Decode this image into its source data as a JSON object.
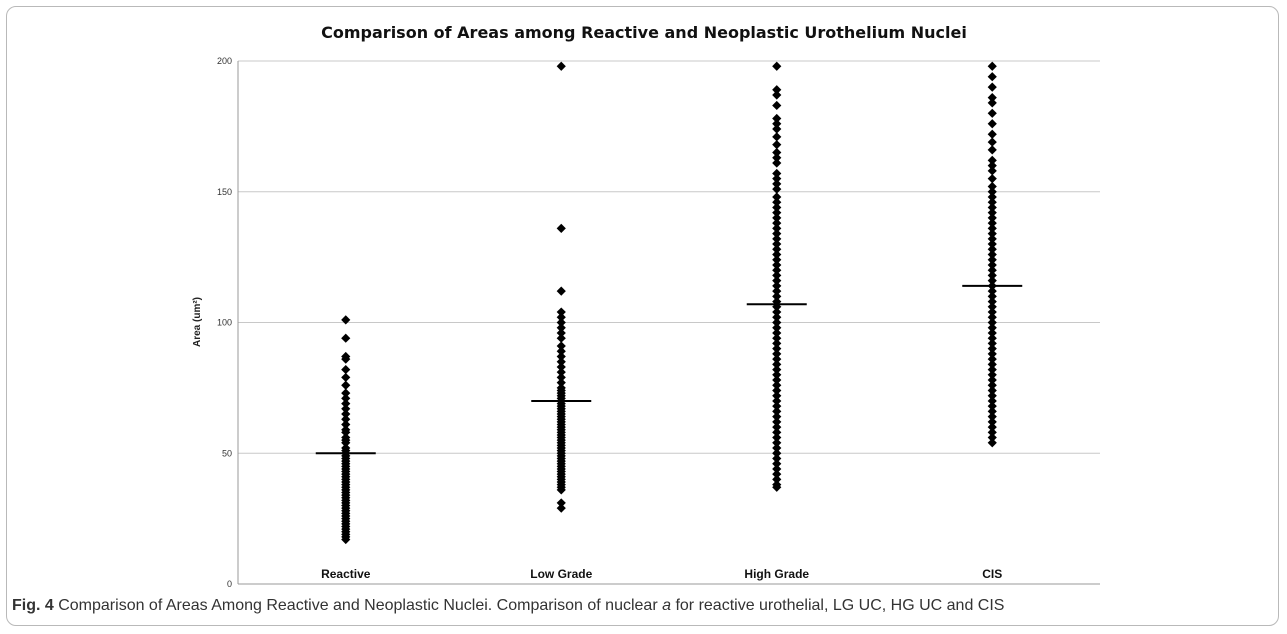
{
  "chart_data": {
    "type": "scatter",
    "title": "Comparison of Areas among Reactive and Neoplastic Urothelium Nuclei",
    "xlabel": "",
    "ylabel": "Area (um²)",
    "ylim": [
      0,
      200
    ],
    "yticks": [
      0,
      50,
      100,
      150,
      200
    ],
    "grid": true,
    "categories": [
      "Reactive",
      "Low Grade",
      "High Grade",
      "CIS"
    ],
    "means": [
      50,
      70,
      107,
      114
    ],
    "series": [
      {
        "category": "Reactive",
        "values": [
          101,
          94,
          87,
          86,
          82,
          79,
          76,
          73,
          71,
          69,
          67,
          65,
          63,
          61,
          59,
          58,
          56,
          55,
          54,
          52,
          51,
          50,
          49,
          48,
          47,
          46,
          45,
          44,
          43,
          42,
          41,
          40,
          39,
          38,
          37,
          36,
          35,
          34,
          33,
          32,
          31,
          30,
          29,
          28,
          27,
          26,
          25,
          24,
          23,
          22,
          21,
          20,
          19,
          18,
          17
        ]
      },
      {
        "category": "Low Grade",
        "values": [
          198,
          136,
          112,
          104,
          102,
          100,
          98,
          96,
          94,
          91,
          89,
          87,
          85,
          83,
          81,
          79,
          77,
          75,
          74,
          73,
          72,
          71,
          70,
          69,
          68,
          67,
          66,
          65,
          64,
          63,
          62,
          61,
          60,
          59,
          58,
          57,
          56,
          55,
          54,
          53,
          52,
          51,
          50,
          49,
          48,
          47,
          46,
          45,
          44,
          43,
          42,
          41,
          40,
          39,
          38,
          37,
          36,
          31,
          29
        ]
      },
      {
        "category": "High Grade",
        "values": [
          198,
          189,
          187,
          183,
          178,
          176,
          174,
          171,
          168,
          165,
          163,
          161,
          157,
          155,
          153,
          151,
          148,
          146,
          144,
          142,
          140,
          138,
          136,
          134,
          132,
          130,
          128,
          126,
          124,
          122,
          120,
          118,
          116,
          114,
          112,
          110,
          108,
          106,
          104,
          102,
          100,
          98,
          96,
          94,
          92,
          90,
          88,
          86,
          84,
          82,
          80,
          78,
          76,
          74,
          72,
          70,
          68,
          66,
          64,
          62,
          60,
          58,
          56,
          54,
          52,
          50,
          48,
          46,
          44,
          42,
          40,
          38,
          37
        ]
      },
      {
        "category": "CIS",
        "values": [
          198,
          194,
          190,
          186,
          184,
          180,
          176,
          172,
          169,
          166,
          162,
          160,
          158,
          155,
          152,
          150,
          148,
          146,
          144,
          142,
          140,
          138,
          136,
          134,
          132,
          130,
          128,
          126,
          124,
          122,
          120,
          118,
          116,
          114,
          112,
          110,
          108,
          106,
          104,
          102,
          100,
          98,
          96,
          94,
          92,
          90,
          88,
          86,
          84,
          82,
          80,
          78,
          76,
          74,
          72,
          70,
          68,
          66,
          64,
          62,
          60,
          58,
          56,
          54
        ]
      }
    ]
  },
  "caption": {
    "label": "Fig. 4",
    "text_before": " Comparison of Areas Among Reactive and Neoplastic Nuclei. Comparison of nuclear ",
    "italic": "a",
    "text_after": " for reactive urothelial, LG UC, HG UC and CIS"
  }
}
